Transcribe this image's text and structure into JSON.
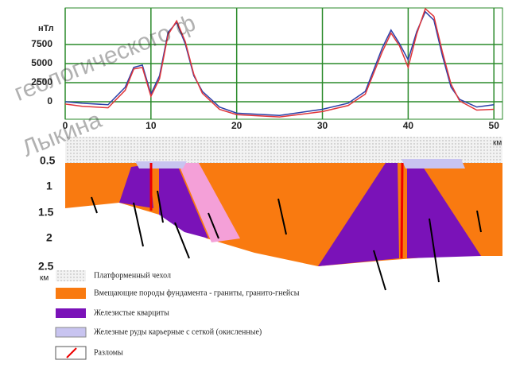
{
  "chart_data": {
    "type": "line",
    "y_label": "нТл",
    "x": [
      0,
      2,
      5,
      7,
      8,
      9,
      10,
      11,
      12,
      13,
      14,
      15,
      16,
      18,
      20,
      25,
      30,
      33,
      35,
      37,
      38,
      39,
      40,
      41,
      42,
      43,
      44,
      45,
      46,
      48,
      50
    ],
    "series": [
      {
        "name": "blue",
        "color": "#2b3fa8",
        "values": [
          0,
          -200,
          -400,
          1900,
          4500,
          4800,
          1000,
          3400,
          9100,
          10400,
          7600,
          3400,
          1350,
          -700,
          -1500,
          -1800,
          -1000,
          -200,
          1350,
          7100,
          9400,
          7600,
          5500,
          9200,
          11800,
          10700,
          6000,
          1900,
          300,
          -700,
          -400
        ]
      },
      {
        "name": "red",
        "color": "#e0353a",
        "values": [
          -300,
          -600,
          -800,
          1500,
          4300,
          4500,
          700,
          3000,
          8800,
          10600,
          7900,
          3600,
          1100,
          -1000,
          -1700,
          -2000,
          -1300,
          -500,
          1000,
          6600,
          9000,
          7300,
          4500,
          8900,
          12200,
          11200,
          6500,
          2300,
          100,
          -1100,
          -1000
        ]
      }
    ],
    "xlim": [
      0,
      51
    ],
    "ylim": [
      -2300,
      12300
    ],
    "xticks": [
      0,
      10,
      20,
      30,
      40,
      50
    ],
    "yticks": [
      0,
      2500,
      5000,
      7500
    ],
    "grid": true
  },
  "watermark": [
    "геологического ф",
    "Лыкина"
  ],
  "section": {
    "unit": "км",
    "depth_ticks": [
      "0.5",
      "1",
      "1.5",
      "2",
      "2.5"
    ]
  },
  "legend": [
    "Платформенный чехол",
    "Вмещающие породы фундамента - граниты, гранито-гнейсы",
    "Железистые кварциты",
    "Железные руды карьерные с сеткой (окисленные)",
    "Разломы"
  ]
}
